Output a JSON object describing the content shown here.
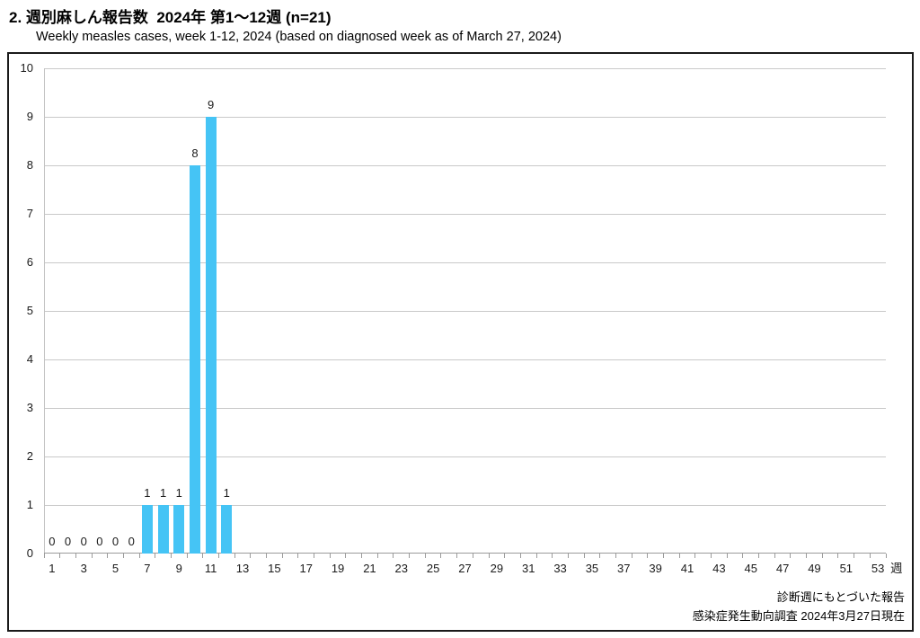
{
  "chart_data": {
    "type": "bar",
    "title": "2. 週別麻しん報告数  2024年 第1～12週 (n=21)",
    "subtitle": "Weekly measles cases, week 1-12, 2024 (based on diagnosed week as of March 27, 2024)",
    "n_total": 21,
    "x": [
      1,
      2,
      3,
      4,
      5,
      6,
      7,
      8,
      9,
      10,
      11,
      12
    ],
    "values": [
      0,
      0,
      0,
      0,
      0,
      0,
      1,
      1,
      1,
      8,
      9,
      1
    ],
    "x_axis_weeks": 53,
    "xtick_labels": [
      "1",
      "3",
      "5",
      "7",
      "9",
      "11",
      "13",
      "15",
      "17",
      "19",
      "21",
      "23",
      "25",
      "27",
      "29",
      "31",
      "33",
      "35",
      "37",
      "39",
      "41",
      "43",
      "45",
      "47",
      "49",
      "51",
      "53"
    ],
    "xlabel": "週",
    "ylabel": "",
    "ylim": [
      0,
      10
    ],
    "yticks": [
      0,
      1,
      2,
      3,
      4,
      5,
      6,
      7,
      8,
      9,
      10
    ],
    "grid": true,
    "legend": "none",
    "data_labels": true,
    "colors": {
      "bar": "#45C4F5",
      "gridline": "#C9C9C9",
      "axis": "#9B9B9B",
      "text": "#1A1A1A",
      "border": "#1A1A1A"
    },
    "footer": [
      "診断週にもとづいた報告",
      "感染症発生動向調査 2024年3月27日現在"
    ]
  }
}
